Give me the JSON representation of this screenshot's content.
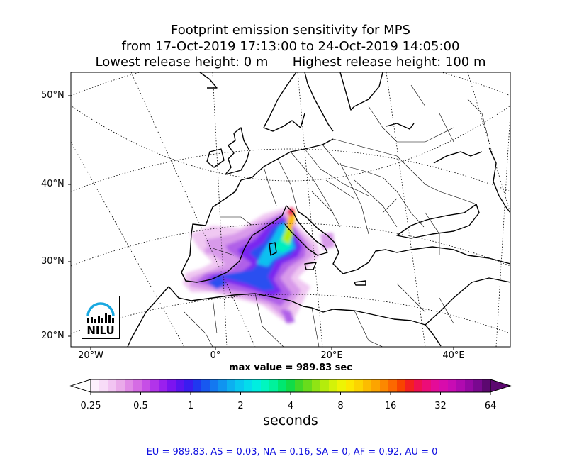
{
  "title": {
    "line1": "Footprint emission sensitivity for MPS",
    "line2": "from 17-Oct-2019 17:13:00 to 24-Oct-2019 14:05:00",
    "line3": "Lowest release height: 0 m      Highest release height: 100 m"
  },
  "axes": {
    "lat_labels": [
      "50°N",
      "40°N",
      "30°N",
      "20°N"
    ],
    "lon_labels": [
      "20°W",
      "0°",
      "20°E",
      "40°E"
    ]
  },
  "max_value": "max value = 989.83 sec",
  "colorbar": {
    "ticks": [
      "0.25",
      "0.5",
      "1",
      "2",
      "4",
      "8",
      "16",
      "32",
      "64"
    ],
    "units": "seconds",
    "colors": [
      "#fdf0fd",
      "#f8dcf8",
      "#f2c4f2",
      "#eaaaea",
      "#e08ae6",
      "#d56ce4",
      "#c64ee6",
      "#b234ea",
      "#9a20ee",
      "#7c14f0",
      "#5a14f0",
      "#3a1cf0",
      "#2038f0",
      "#1858f0",
      "#1478f0",
      "#1094f0",
      "#0cb0f0",
      "#08c8f0",
      "#04dcec",
      "#00eee0",
      "#00f6c0",
      "#00f29c",
      "#00e870",
      "#10dc48",
      "#40d828",
      "#68dc1c",
      "#90e414",
      "#b4ec0c",
      "#d4f208",
      "#eef404",
      "#fce800",
      "#fcd400",
      "#fcbc00",
      "#fca400",
      "#fc8800",
      "#fc6800",
      "#f84400",
      "#f42020",
      "#f01050",
      "#ec0c78",
      "#e40c98",
      "#d80cac",
      "#c80cb4",
      "#b00ab0",
      "#9608a4",
      "#7a0890",
      "#5c0870"
    ]
  },
  "summary": "EU = 989.83,  AS = 0.03,  NA = 0.16,  SA = 0,  AF = 0.92,  AU = 0",
  "logo": {
    "text": "NILU"
  }
}
